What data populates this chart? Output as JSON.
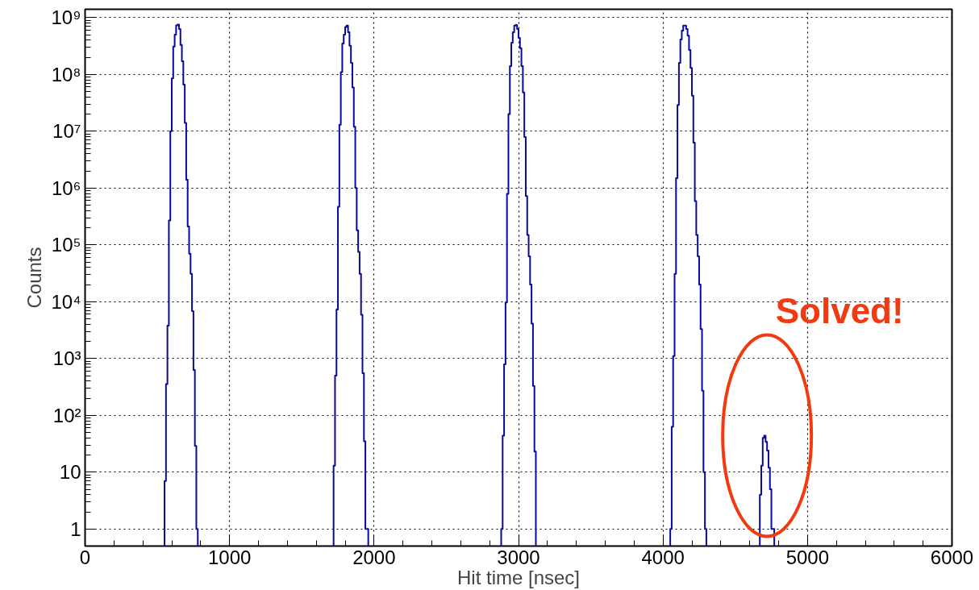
{
  "chart_data": {
    "type": "histogram",
    "xlabel": "Hit time [nsec]",
    "ylabel": "Counts",
    "color": "#0a0a9a",
    "bins": [
      550,
      560,
      570,
      580,
      590,
      600,
      610,
      620,
      630,
      640,
      650,
      660,
      670,
      680,
      690,
      700,
      710,
      720,
      730,
      740,
      750,
      760,
      770,
      780,
      1720,
      1730,
      1740,
      1750,
      1760,
      1770,
      1780,
      1790,
      1800,
      1810,
      1820,
      1830,
      1840,
      1850,
      1860,
      1870,
      1880,
      1890,
      1900,
      1910,
      1920,
      1930,
      1940,
      1950,
      1960,
      2880,
      2890,
      2900,
      2910,
      2920,
      2930,
      2940,
      2950,
      2960,
      2970,
      2980,
      2990,
      3000,
      3010,
      3020,
      3030,
      3040,
      3050,
      3060,
      3070,
      3080,
      3090,
      3100,
      3110,
      3120,
      4050,
      4060,
      4070,
      4080,
      4090,
      4100,
      4110,
      4120,
      4130,
      4140,
      4150,
      4160,
      4170,
      4180,
      4190,
      4200,
      4210,
      4220,
      4230,
      4240,
      4250,
      4260,
      4270,
      4280,
      4290,
      4300,
      4670,
      4680,
      4690,
      4700,
      4710,
      4720,
      4730,
      4740,
      4750,
      4760,
      4770
    ],
    "values": [
      7,
      355,
      3800,
      270000,
      10000000,
      85000000,
      310000000,
      500000000,
      730000000,
      750000000,
      630000000,
      330000000,
      170000000,
      66000000,
      14000000,
      1400000,
      210000,
      70000,
      31000,
      6800,
      630,
      29,
      1,
      null,
      13,
      500,
      7300,
      470000,
      13000000,
      110000000,
      350000000,
      500000000,
      680000000,
      720000000,
      550000000,
      320000000,
      160000000,
      59000000,
      12000000,
      1000000,
      180000,
      75000,
      31000,
      5900,
      550,
      35,
      1,
      1,
      null,
      1,
      44,
      790,
      9700,
      790000,
      20000000,
      140000000,
      360000000,
      550000000,
      720000000,
      740000000,
      630000000,
      440000000,
      290000000,
      140000000,
      48000000,
      7900000,
      720000,
      150000,
      63000,
      20000,
      4100,
      330,
      23,
      null,
      1,
      63,
      1100,
      31000,
      1500000,
      29000000,
      160000000,
      410000000,
      590000000,
      720000000,
      720000000,
      630000000,
      480000000,
      270000000,
      130000000,
      42000000,
      6300000,
      590000,
      150000,
      63000,
      20000,
      3300,
      270,
      10,
      1,
      null,
      4,
      13,
      40,
      44,
      34,
      24,
      12,
      5,
      1,
      1
    ],
    "log": "y",
    "xlim": [
      0,
      6000
    ],
    "xticks": [
      0,
      1000,
      2000,
      3000,
      4000,
      5000,
      6000
    ],
    "ylim": [
      0.5,
      1400000000
    ],
    "yticks": [
      {
        "value": 1,
        "label": "1"
      },
      {
        "value": 10,
        "label": "10"
      },
      {
        "value": 100,
        "label": "10²"
      },
      {
        "value": 1000,
        "label": "10³"
      },
      {
        "value": 10000,
        "label": "10⁴"
      },
      {
        "value": 100000,
        "label": "10⁵"
      },
      {
        "value": 1000000,
        "label": "10⁶"
      },
      {
        "value": 10000000,
        "label": "10⁷"
      },
      {
        "value": 100000000,
        "label": "10⁸"
      },
      {
        "value": 1000000000,
        "label": "10⁹"
      }
    ],
    "grid": true,
    "annotations": [
      {
        "text": "Solved!",
        "x": 4720,
        "y": 44
      }
    ]
  }
}
